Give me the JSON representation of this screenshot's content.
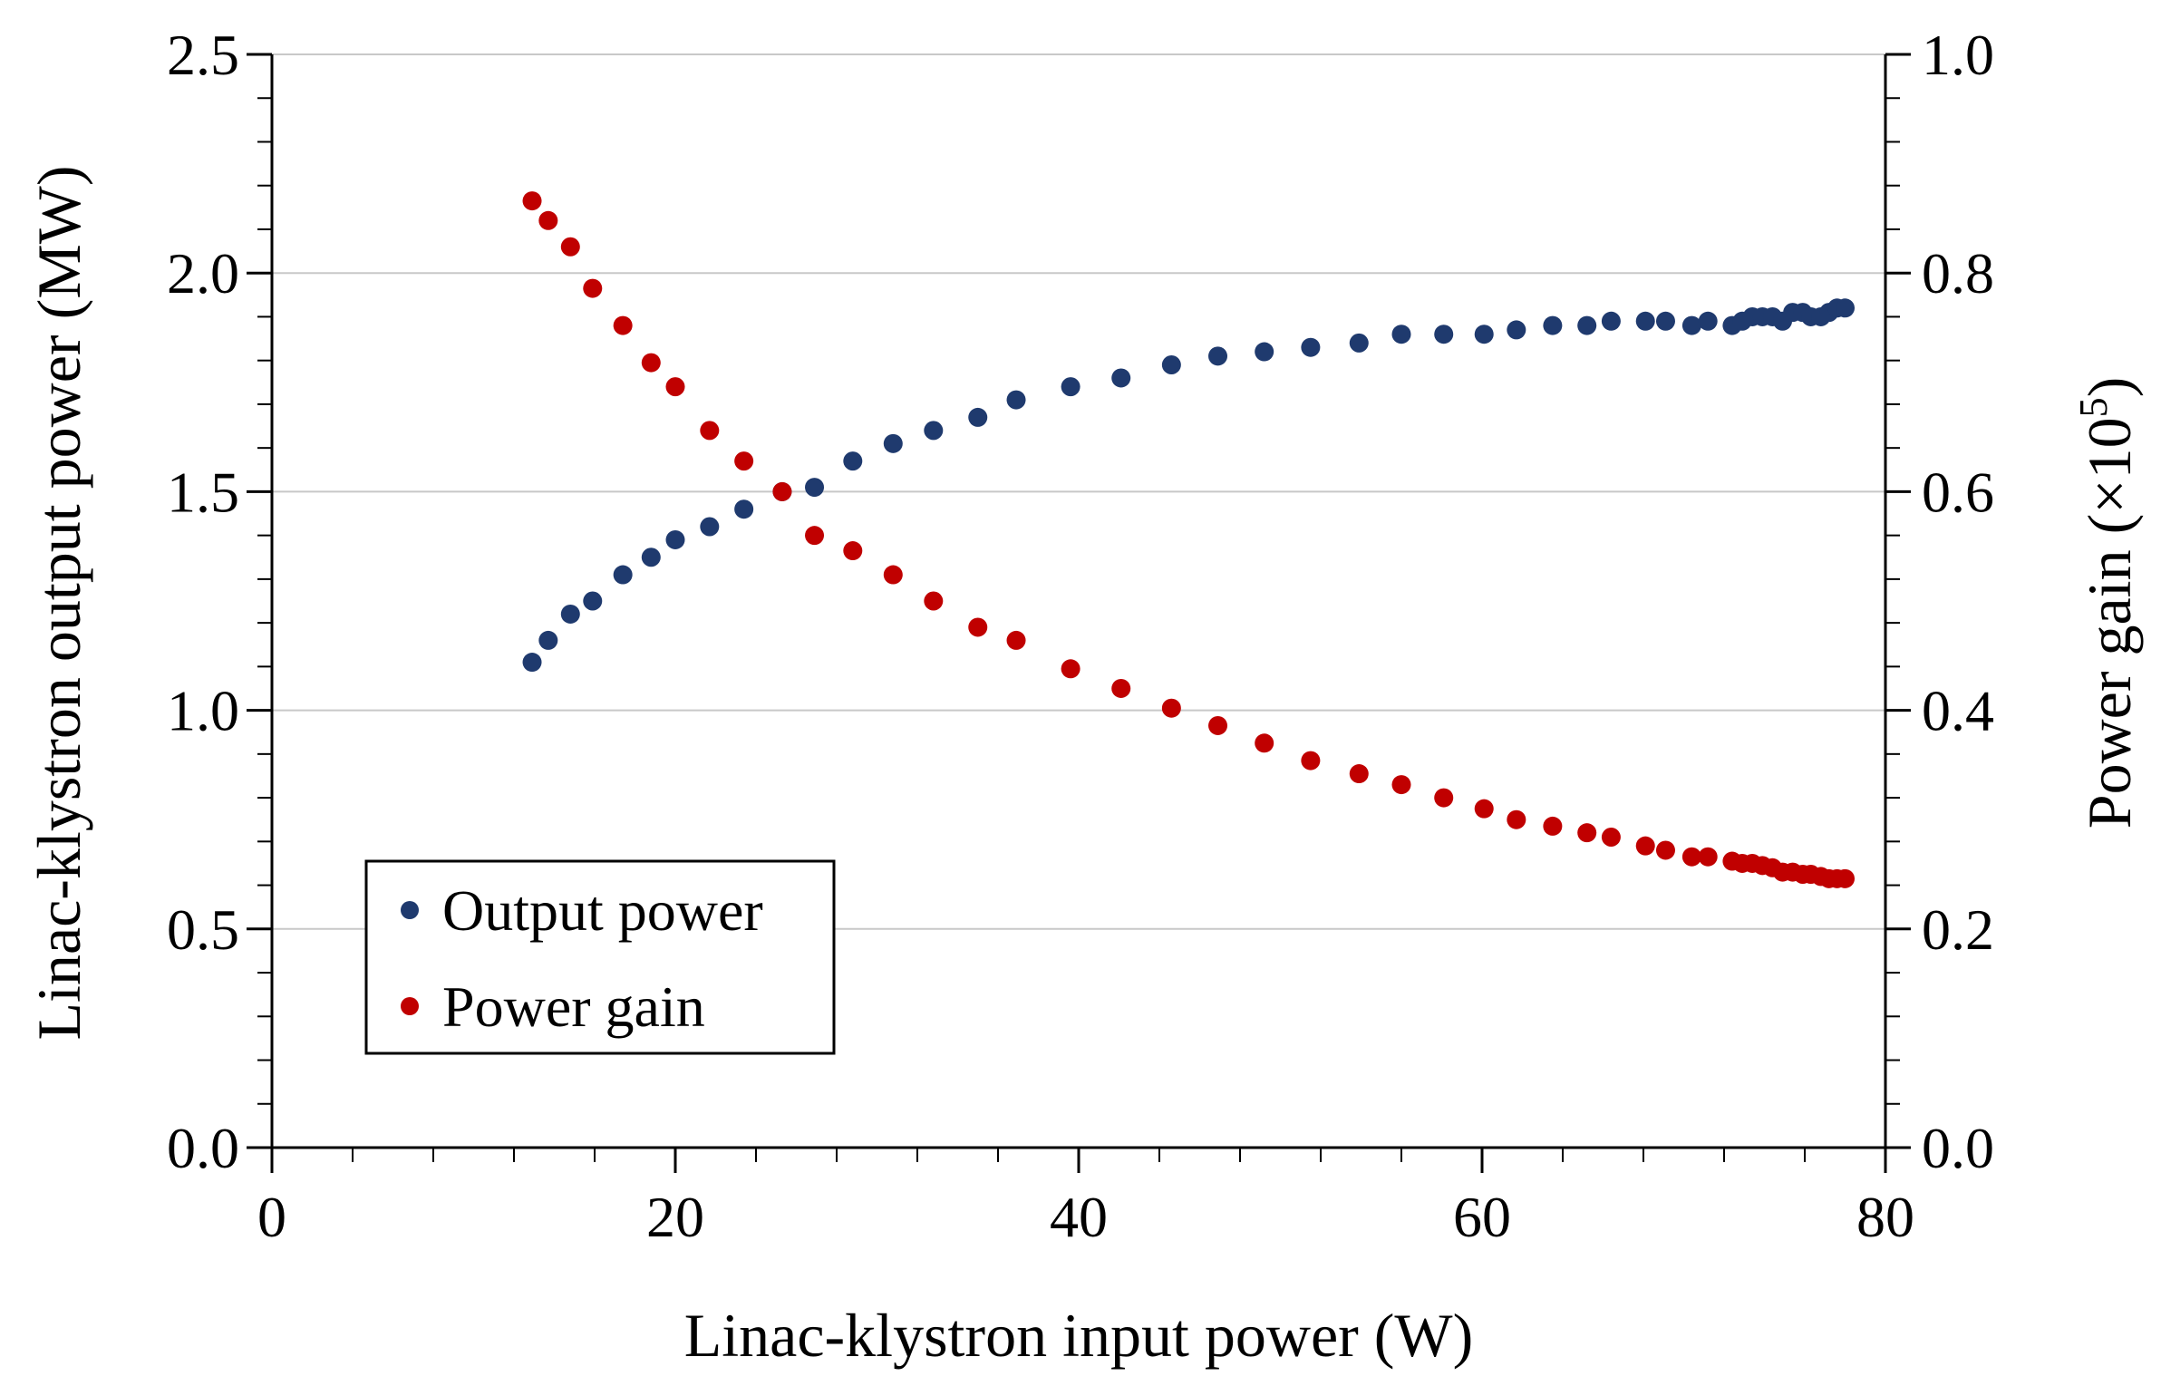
{
  "chart_data": {
    "type": "scatter",
    "title": "",
    "xlabel": "Linac-klystron input power (W)",
    "ylabel_left": "Linac-klystron output power (MW)",
    "ylabel_right_prefix": "Power gain (",
    "ylabel_right_base": "×10",
    "ylabel_right_exp": "5",
    "ylabel_right_suffix": ")",
    "xlim": [
      0,
      80
    ],
    "ylim_left": [
      0,
      2.5
    ],
    "ylim_right": [
      0,
      1.0
    ],
    "x_ticks": [
      "0",
      "20",
      "40",
      "60",
      "80"
    ],
    "y_left_ticks": [
      "0.0",
      "0.5",
      "1.0",
      "1.5",
      "2.0",
      "2.5"
    ],
    "y_right_ticks": [
      "0.0",
      "0.2",
      "0.4",
      "0.6",
      "0.8",
      "1.0"
    ],
    "grid": "horizontal",
    "legend_position": "lower-left",
    "series": [
      {
        "name": "Output power",
        "axis": "left",
        "color": "#1f3a6e",
        "x": [
          12.9,
          13.7,
          14.8,
          15.9,
          17.4,
          18.8,
          20.0,
          21.7,
          23.4,
          25.3,
          26.9,
          28.8,
          30.8,
          32.8,
          35.0,
          36.9,
          39.6,
          42.1,
          44.6,
          46.9,
          49.2,
          51.5,
          53.9,
          56.0,
          58.1,
          60.1,
          61.7,
          63.5,
          65.2,
          66.4,
          68.1,
          69.1,
          70.4,
          71.2,
          72.4,
          72.9,
          73.4,
          73.9,
          74.4,
          74.9,
          75.4,
          75.9,
          76.3,
          76.8,
          77.2,
          77.6,
          78.0
        ],
        "y": [
          1.11,
          1.16,
          1.22,
          1.25,
          1.31,
          1.35,
          1.39,
          1.42,
          1.46,
          1.5,
          1.51,
          1.57,
          1.61,
          1.64,
          1.67,
          1.71,
          1.74,
          1.76,
          1.79,
          1.81,
          1.82,
          1.83,
          1.84,
          1.86,
          1.86,
          1.86,
          1.87,
          1.88,
          1.88,
          1.89,
          1.89,
          1.89,
          1.88,
          1.89,
          1.88,
          1.89,
          1.9,
          1.9,
          1.9,
          1.89,
          1.91,
          1.91,
          1.9,
          1.9,
          1.91,
          1.92,
          1.92
        ]
      },
      {
        "name": "Power gain",
        "axis": "right",
        "color": "#c00000",
        "x": [
          12.9,
          13.7,
          14.8,
          15.9,
          17.4,
          18.8,
          20.0,
          21.7,
          23.4,
          25.3,
          26.9,
          28.8,
          30.8,
          32.8,
          35.0,
          36.9,
          39.6,
          42.1,
          44.6,
          46.9,
          49.2,
          51.5,
          53.9,
          56.0,
          58.1,
          60.1,
          61.7,
          63.5,
          65.2,
          66.4,
          68.1,
          69.1,
          70.4,
          71.2,
          72.4,
          72.9,
          73.4,
          73.9,
          74.4,
          74.9,
          75.4,
          75.9,
          76.3,
          76.8,
          77.2,
          77.6,
          78.0
        ],
        "y": [
          0.866,
          0.848,
          0.824,
          0.786,
          0.752,
          0.718,
          0.696,
          0.656,
          0.628,
          0.6,
          0.56,
          0.546,
          0.524,
          0.5,
          0.476,
          0.464,
          0.438,
          0.42,
          0.402,
          0.386,
          0.37,
          0.354,
          0.342,
          0.332,
          0.32,
          0.31,
          0.3,
          0.294,
          0.288,
          0.284,
          0.276,
          0.272,
          0.266,
          0.266,
          0.262,
          0.26,
          0.26,
          0.258,
          0.256,
          0.252,
          0.252,
          0.25,
          0.25,
          0.248,
          0.246,
          0.246,
          0.246
        ]
      }
    ]
  }
}
